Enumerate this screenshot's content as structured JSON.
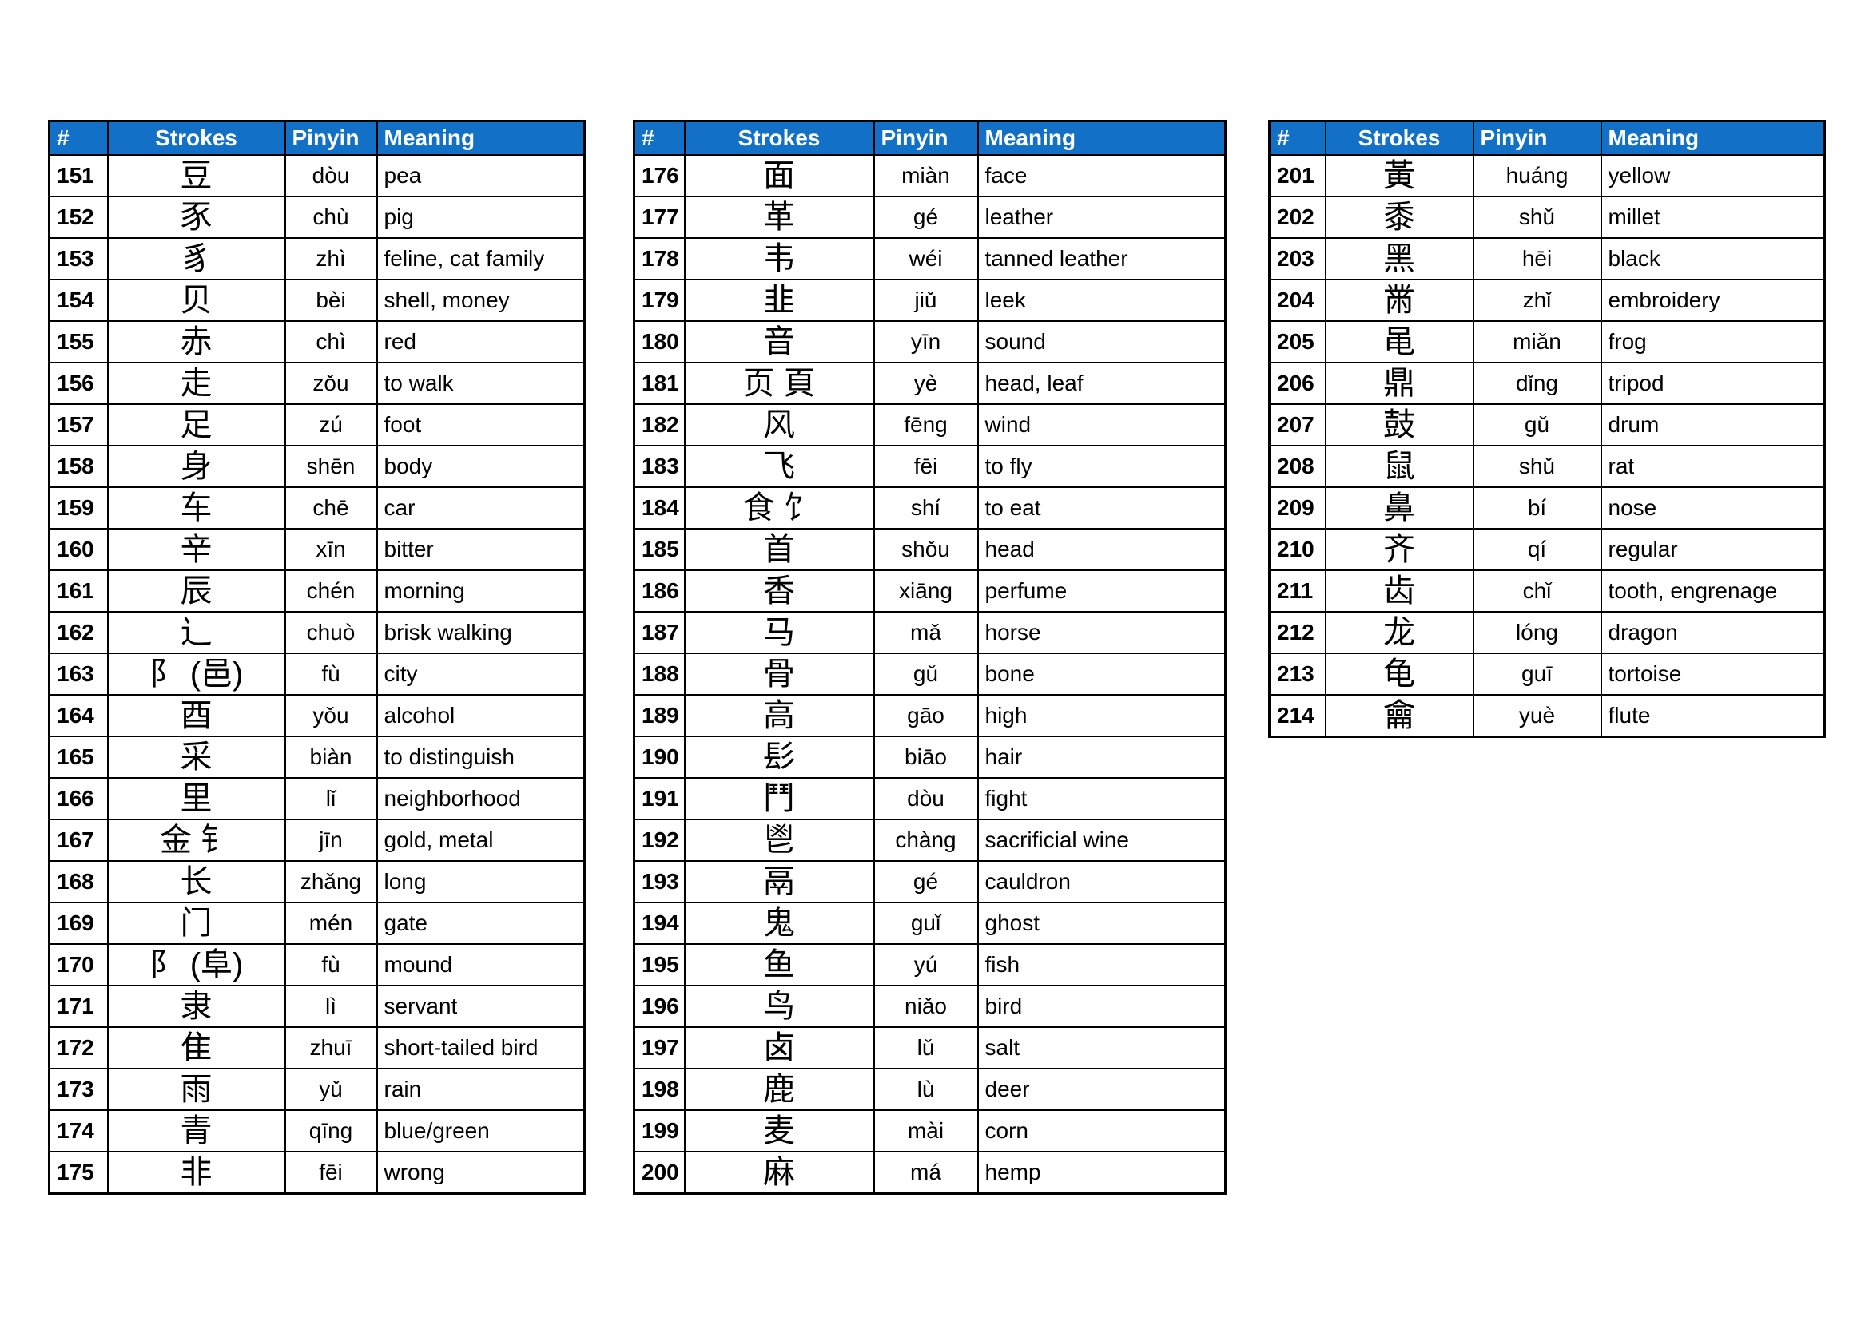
{
  "style": {
    "header_bg": "#1271C6",
    "header_text_color": "#ffffff",
    "border_color": "#000000",
    "page_bg": "#ffffff"
  },
  "columns": [
    "#",
    "Strokes",
    "Pinyin",
    "Meaning"
  ],
  "tables": [
    {
      "name": "radicals-151-175",
      "rows": [
        [
          "151",
          "豆",
          "dòu",
          "pea"
        ],
        [
          "152",
          "豕",
          "chù",
          "pig"
        ],
        [
          "153",
          "豸",
          "zhì",
          "feline, cat family"
        ],
        [
          "154",
          "贝",
          "bèi",
          "shell, money"
        ],
        [
          "155",
          "赤",
          "chì",
          "red"
        ],
        [
          "156",
          "走",
          "zǒu",
          "to walk"
        ],
        [
          "157",
          "足",
          "zú",
          "foot"
        ],
        [
          "158",
          "身",
          "shēn",
          "body"
        ],
        [
          "159",
          "车",
          "chē",
          "car"
        ],
        [
          "160",
          "辛",
          "xīn",
          "bitter"
        ],
        [
          "161",
          "辰",
          "chén",
          "morning"
        ],
        [
          "162",
          "辶",
          "chuò",
          "brisk walking"
        ],
        [
          "163",
          "阝 (邑)",
          "fù",
          "city"
        ],
        [
          "164",
          "酉",
          "yǒu",
          "alcohol"
        ],
        [
          "165",
          "采",
          "biàn",
          "to distinguish"
        ],
        [
          "166",
          "里",
          "lǐ",
          "neighborhood"
        ],
        [
          "167",
          "金 钅",
          "jīn",
          "gold, metal"
        ],
        [
          "168",
          "长",
          "zhǎng",
          "long"
        ],
        [
          "169",
          "门",
          "mén",
          "gate"
        ],
        [
          "170",
          "阝 (阜)",
          "fù",
          "mound"
        ],
        [
          "171",
          "隶",
          "lì",
          "servant"
        ],
        [
          "172",
          "隹",
          "zhuī",
          "short-tailed bird"
        ],
        [
          "173",
          "雨",
          "yǔ",
          "rain"
        ],
        [
          "174",
          "青",
          "qīng",
          "blue/green"
        ],
        [
          "175",
          "非",
          "fēi",
          "wrong"
        ]
      ]
    },
    {
      "name": "radicals-176-200",
      "rows": [
        [
          "176",
          "面",
          "miàn",
          "face"
        ],
        [
          "177",
          "革",
          "gé",
          "leather"
        ],
        [
          "178",
          "韦",
          "wéi",
          "tanned leather"
        ],
        [
          "179",
          "韭",
          "jiǔ",
          "leek"
        ],
        [
          "180",
          "音",
          "yīn",
          "sound"
        ],
        [
          "181",
          "页 頁",
          "yè",
          "head, leaf"
        ],
        [
          "182",
          "风",
          "fēng",
          "wind"
        ],
        [
          "183",
          "飞",
          "fēi",
          "to fly"
        ],
        [
          "184",
          "食 饣",
          "shí",
          "to eat"
        ],
        [
          "185",
          "首",
          "shǒu",
          "head"
        ],
        [
          "186",
          "香",
          "xiāng",
          "perfume"
        ],
        [
          "187",
          "马",
          "mǎ",
          "horse"
        ],
        [
          "188",
          "骨",
          "gǔ",
          "bone"
        ],
        [
          "189",
          "高",
          "gāo",
          "high"
        ],
        [
          "190",
          "髟",
          "biāo",
          "hair"
        ],
        [
          "191",
          "鬥",
          "dòu",
          "fight"
        ],
        [
          "192",
          "鬯",
          "chàng",
          "sacrificial wine"
        ],
        [
          "193",
          "鬲",
          "gé",
          "cauldron"
        ],
        [
          "194",
          "鬼",
          "guǐ",
          "ghost"
        ],
        [
          "195",
          "鱼",
          "yú",
          "fish"
        ],
        [
          "196",
          "鸟",
          "niǎo",
          "bird"
        ],
        [
          "197",
          "卤",
          "lǔ",
          "salt"
        ],
        [
          "198",
          "鹿",
          "lù",
          "deer"
        ],
        [
          "199",
          "麦",
          "mài",
          "corn"
        ],
        [
          "200",
          "麻",
          "má",
          "hemp"
        ]
      ]
    },
    {
      "name": "radicals-201-214",
      "rows": [
        [
          "201",
          "黃",
          "huáng",
          "yellow"
        ],
        [
          "202",
          "黍",
          "shǔ",
          "millet"
        ],
        [
          "203",
          "黑",
          "hēi",
          "black"
        ],
        [
          "204",
          "黹",
          "zhǐ",
          "embroidery"
        ],
        [
          "205",
          "黾",
          "miǎn",
          "frog"
        ],
        [
          "206",
          "鼎",
          "dǐng",
          "tripod"
        ],
        [
          "207",
          "鼓",
          "gǔ",
          "drum"
        ],
        [
          "208",
          "鼠",
          "shǔ",
          "rat"
        ],
        [
          "209",
          "鼻",
          "bí",
          "nose"
        ],
        [
          "210",
          "齐",
          "qí",
          "regular"
        ],
        [
          "211",
          "齿",
          "chǐ",
          "tooth, engrenage"
        ],
        [
          "212",
          "龙",
          "lóng",
          "dragon"
        ],
        [
          "213",
          "龟",
          "guī",
          "tortoise"
        ],
        [
          "214",
          "龠",
          "yuè",
          "flute"
        ]
      ]
    }
  ]
}
